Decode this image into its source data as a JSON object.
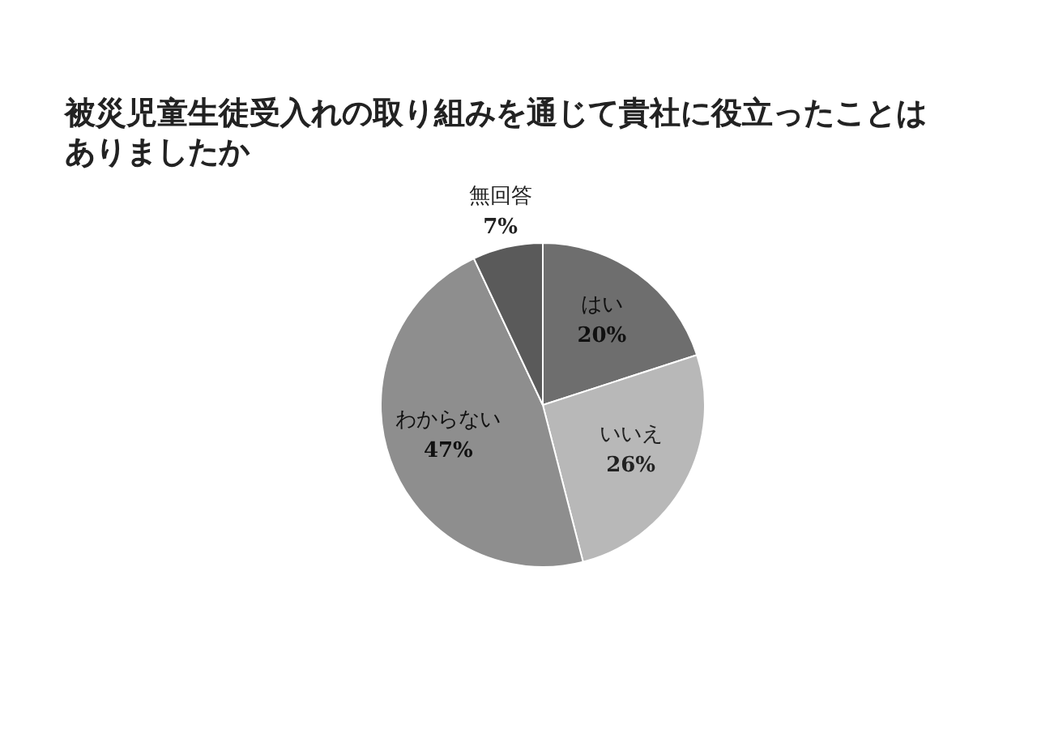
{
  "chart_data": {
    "type": "pie",
    "title": "被災児童生徒受入れの取り組みを通じて貴社に役立ったことはありましたか",
    "categories": [
      "はい",
      "いいえ",
      "わからない",
      "無回答"
    ],
    "values": [
      20,
      26,
      47,
      7
    ],
    "colors": [
      "#6e6e6e",
      "#b8b8b8",
      "#8e8e8e",
      "#5a5a5a"
    ],
    "value_labels": [
      "20%",
      "26%",
      "47%",
      "7%"
    ],
    "legend": false
  }
}
